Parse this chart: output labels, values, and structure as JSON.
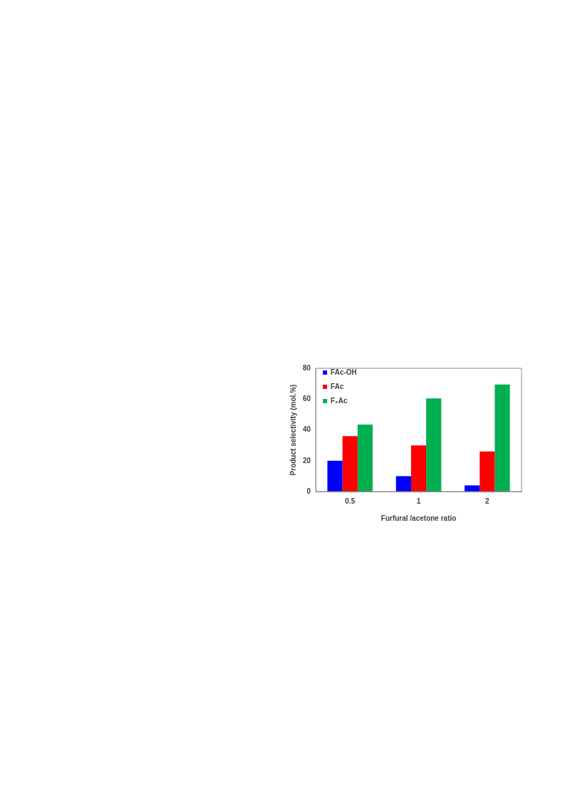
{
  "chart_data": {
    "type": "bar",
    "xlabel": "Furfural /acetone ratio",
    "ylabel": "Product selectivity (mol.%)",
    "categories": [
      "0.5",
      "1",
      "2"
    ],
    "series": [
      {
        "name": "FAc-OH",
        "color": "#0000ff",
        "values": [
          20,
          10,
          4
        ]
      },
      {
        "name": "FAc",
        "color": "#ff0000",
        "values": [
          36,
          30,
          26
        ]
      },
      {
        "name": "F₂Ac",
        "color": "#00b050",
        "values": [
          43.5,
          60.5,
          69.5
        ]
      }
    ],
    "ylim": [
      0,
      80
    ],
    "yticks": [
      0,
      20,
      40,
      60,
      80
    ],
    "grid": false,
    "legend": "top left"
  }
}
